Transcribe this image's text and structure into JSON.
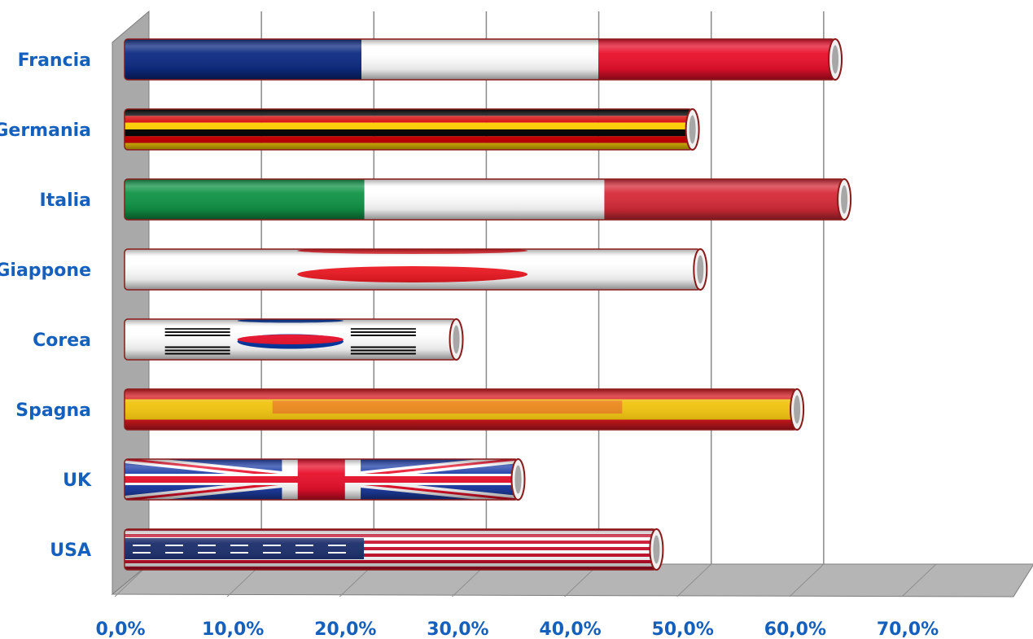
{
  "chart_data": {
    "type": "bar",
    "orientation": "horizontal",
    "style": "3d-cylinder-flags",
    "categories": [
      "Francia",
      "Germania",
      "Italia",
      "Giappone",
      "Corea",
      "Spagna",
      "UK",
      "USA"
    ],
    "values": [
      63.2,
      50.5,
      64.0,
      51.2,
      29.5,
      59.8,
      35.0,
      47.3
    ],
    "xlim": [
      0,
      70
    ],
    "xticks": [
      "0,0%",
      "10,0%",
      "20,0%",
      "30,0%",
      "40,0%",
      "50,0%",
      "60,0%",
      "70,0%"
    ],
    "grid": true,
    "legend": "none",
    "colors": {
      "label": "#1560bd",
      "wall": "#a9a9a9",
      "floor": "#b5b5b5",
      "grid": "#8a8a8a",
      "bar_outline": "#8b1a1a"
    },
    "flag_styles": [
      "france",
      "germany",
      "italy",
      "japan",
      "korea",
      "spain",
      "uk",
      "usa"
    ]
  }
}
